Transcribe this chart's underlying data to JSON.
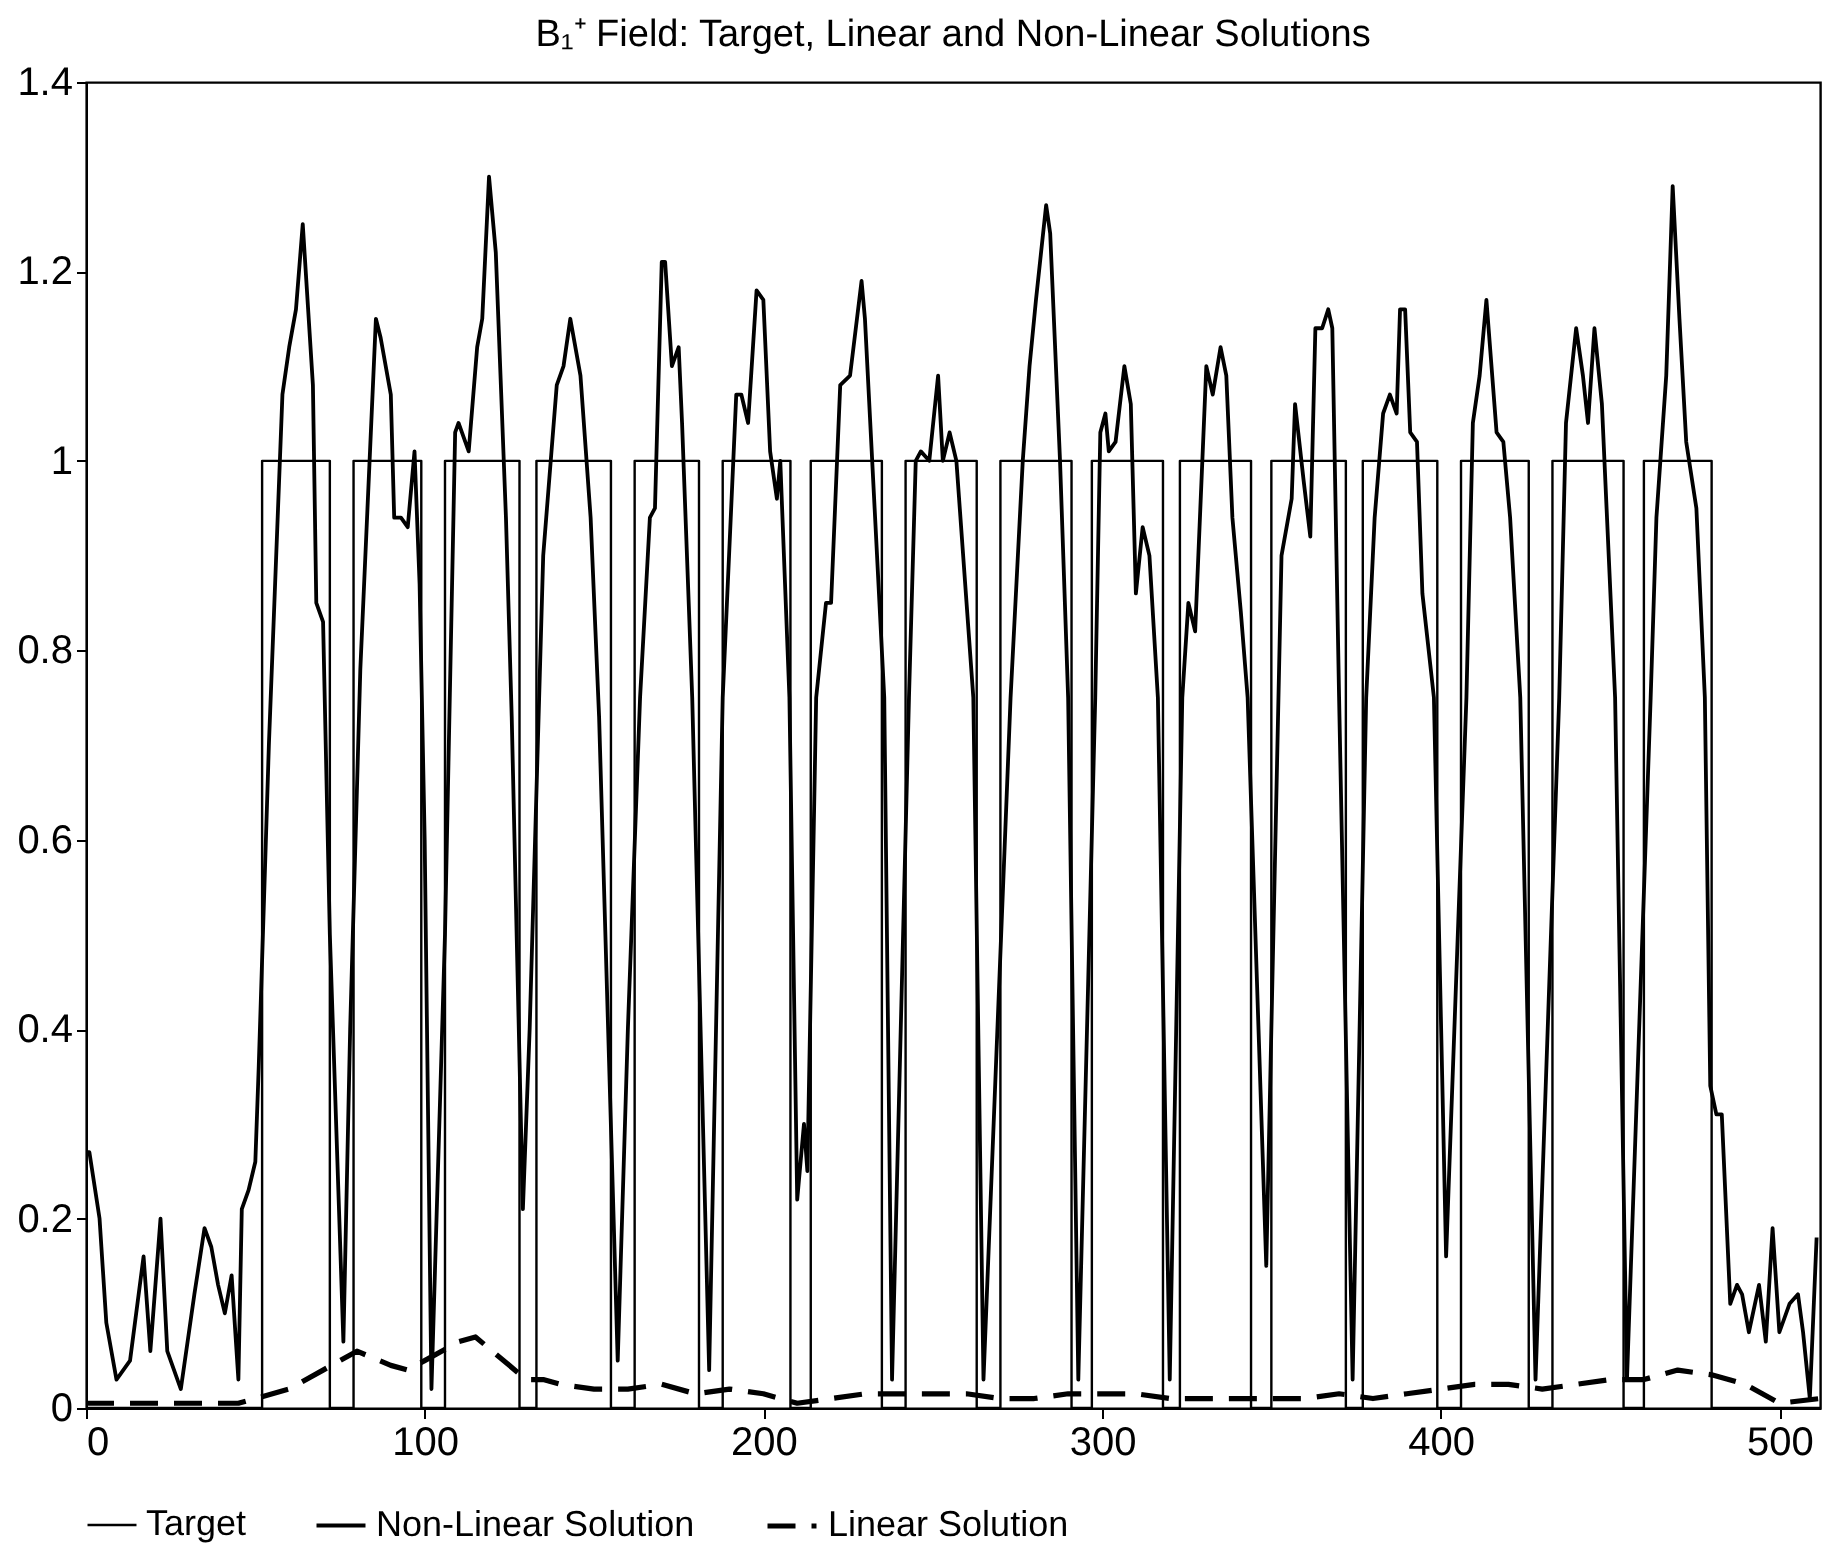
{
  "chart_data": {
    "type": "line",
    "title": "B₁⁺ Field: Target, Linear and Non-Linear Solutions",
    "xlim": [
      0,
      512
    ],
    "xticks": [
      0,
      100,
      200,
      300,
      400,
      500
    ],
    "ylim": [
      0,
      1.4
    ],
    "yticks": [
      0,
      0.2,
      0.4,
      0.6,
      0.8,
      1,
      1.2,
      1.4
    ],
    "legend": "bottom",
    "marker": "none",
    "series": [
      {
        "name": "Target",
        "color": "#000000",
        "line_style": "solid",
        "x": [
          0,
          52,
          52,
          72,
          72,
          79,
          79,
          99,
          99,
          106,
          106,
          128,
          128,
          133,
          133,
          155,
          155,
          162,
          162,
          181,
          181,
          188,
          188,
          208,
          208,
          214,
          214,
          235,
          235,
          242,
          242,
          263,
          263,
          270,
          270,
          291,
          291,
          297,
          297,
          318,
          318,
          323,
          323,
          344,
          344,
          350,
          350,
          372,
          372,
          377,
          377,
          399,
          399,
          406,
          406,
          426,
          426,
          433,
          433,
          454,
          454,
          460,
          460,
          480,
          480,
          512
        ],
        "values": [
          0,
          0,
          1,
          1,
          0,
          0,
          1,
          1,
          0,
          0,
          1,
          1,
          0,
          0,
          1,
          1,
          0,
          0,
          1,
          1,
          0,
          0,
          1,
          1,
          0,
          0,
          1,
          1,
          0,
          0,
          1,
          1,
          0,
          0,
          1,
          1,
          0,
          0,
          1,
          1,
          0,
          0,
          1,
          1,
          0,
          0,
          1,
          1,
          0,
          0,
          1,
          1,
          0,
          0,
          1,
          1,
          0,
          0,
          1,
          1,
          0,
          0,
          1,
          1,
          0,
          0
        ]
      },
      {
        "name": "Non-Linear Solution",
        "color": "#000000",
        "line_style": "solid",
        "x": [
          0,
          1,
          4,
          6,
          9,
          13,
          17,
          19,
          22,
          24,
          28,
          32,
          35,
          37,
          39,
          41,
          43,
          45,
          46,
          48,
          50,
          51,
          54,
          58,
          60,
          62,
          64,
          67,
          68,
          70,
          72,
          76,
          78,
          81,
          85.6,
          87,
          90,
          91,
          93,
          95,
          97,
          98.5,
          100,
          102,
          106,
          109,
          110,
          113,
          115.5,
          117,
          119,
          121,
          124,
          125.7,
          129,
          131,
          135,
          139,
          141,
          143,
          146,
          149,
          151.5,
          157,
          160,
          163.6,
          166.5,
          168,
          170,
          171,
          173,
          175,
          176,
          179,
          184,
          188,
          192,
          193.5,
          195.5,
          198,
          200,
          202,
          204,
          205,
          207.7,
          210,
          212,
          213,
          215.6,
          218.5,
          220,
          222.7,
          225.6,
          229,
          230,
          233,
          235.7,
          238,
          243,
          245,
          246.5,
          249,
          251.6,
          253,
          255,
          257,
          259,
          262,
          265,
          273,
          276.6,
          278.6,
          280.5,
          283.5,
          284.7,
          287.6,
          290,
          293,
          298,
          299.5,
          301,
          302,
          304,
          306.6,
          308.5,
          310,
          312,
          314,
          316.5,
          320,
          323.7,
          325.5,
          327.5,
          330.8,
          332.7,
          335,
          336.7,
          338.5,
          341,
          343,
          348.5,
          353,
          356,
          357,
          359.5,
          361.5,
          363,
          365,
          366.8,
          368,
          370,
          374,
          378,
          380.5,
          383,
          385,
          387,
          388,
          389.5,
          391,
          393,
          394.6,
          398,
          401.6,
          407.6,
          409.5,
          411.5,
          413.5,
          416.5,
          418.5,
          420.5,
          423.5,
          428,
          435,
          437,
          440,
          442,
          443.5,
          445.4,
          447.6,
          451.5,
          455,
          462,
          463.7,
          466.6,
          468.5,
          470.5,
          472.5,
          475.5,
          478,
          479.6,
          481.4,
          483,
          485.5,
          487.5,
          489,
          491,
          494,
          496,
          498,
          500,
          503,
          505.5,
          507,
          509,
          511
        ],
        "values": [
          0.27,
          0.27,
          0.2,
          0.09,
          0.03,
          0.05,
          0.16,
          0.06,
          0.2,
          0.06,
          0.02,
          0.12,
          0.19,
          0.17,
          0.13,
          0.1,
          0.14,
          0.03,
          0.21,
          0.23,
          0.26,
          0.36,
          0.7,
          1.07,
          1.12,
          1.16,
          1.25,
          1.08,
          0.85,
          0.83,
          0.5,
          0.07,
          0.4,
          0.78,
          1.15,
          1.13,
          1.07,
          0.94,
          0.94,
          0.93,
          1.01,
          0.87,
          0.6,
          0.02,
          0.5,
          1.03,
          1.04,
          1.01,
          1.12,
          1.15,
          1.3,
          1.22,
          0.94,
          0.73,
          0.21,
          0.4,
          0.9,
          1.08,
          1.1,
          1.15,
          1.09,
          0.94,
          0.73,
          0.05,
          0.4,
          0.75,
          0.94,
          0.95,
          1.21,
          1.21,
          1.1,
          1.12,
          1.04,
          0.75,
          0.04,
          0.75,
          1.07,
          1.07,
          1.04,
          1.18,
          1.17,
          1.01,
          0.96,
          1.0,
          0.75,
          0.22,
          0.3,
          0.25,
          0.75,
          0.85,
          0.85,
          1.08,
          1.09,
          1.19,
          1.15,
          0.94,
          0.75,
          0.03,
          0.75,
          1.0,
          1.01,
          1.0,
          1.09,
          1.0,
          1.03,
          1.0,
          0.9,
          0.75,
          0.03,
          0.75,
          1.0,
          1.1,
          1.17,
          1.27,
          1.24,
          1.0,
          0.75,
          0.03,
          0.75,
          1.03,
          1.05,
          1.01,
          1.02,
          1.1,
          1.06,
          0.86,
          0.93,
          0.9,
          0.75,
          0.03,
          0.75,
          0.85,
          0.82,
          1.1,
          1.07,
          1.12,
          1.09,
          0.94,
          0.84,
          0.75,
          0.15,
          0.9,
          0.96,
          1.06,
          0.98,
          0.92,
          1.14,
          1.14,
          1.16,
          1.14,
          0.75,
          0.03,
          0.75,
          0.94,
          1.05,
          1.07,
          1.05,
          1.16,
          1.16,
          1.03,
          1.02,
          0.86,
          0.75,
          0.16,
          0.75,
          1.04,
          1.09,
          1.17,
          1.03,
          1.02,
          0.94,
          0.75,
          0.03,
          0.75,
          1.04,
          1.14,
          1.09,
          1.04,
          1.14,
          1.06,
          0.75,
          0.03,
          0.75,
          0.94,
          1.09,
          1.29,
          1.15,
          1.02,
          0.95,
          0.75,
          0.34,
          0.31,
          0.31,
          0.11,
          0.13,
          0.12,
          0.08,
          0.13,
          0.07,
          0.19,
          0.08,
          0.11,
          0.12,
          0.08,
          0.01,
          0.18
        ]
      },
      {
        "name": "Linear Solution",
        "color": "#000000",
        "line_style": "dashed",
        "x": [
          0,
          20,
          45,
          50,
          60,
          70,
          80,
          90,
          95,
          100,
          110,
          115,
          120,
          130,
          135,
          140,
          150,
          160,
          170,
          180,
          190,
          200,
          210,
          220,
          230,
          240,
          250,
          260,
          270,
          280,
          290,
          300,
          310,
          320,
          330,
          340,
          350,
          360,
          370,
          380,
          390,
          400,
          410,
          420,
          430,
          440,
          450,
          460,
          470,
          480,
          490,
          500,
          512
        ],
        "values": [
          0.005,
          0.005,
          0.005,
          0.01,
          0.02,
          0.04,
          0.06,
          0.045,
          0.04,
          0.05,
          0.07,
          0.075,
          0.06,
          0.03,
          0.03,
          0.025,
          0.02,
          0.02,
          0.025,
          0.015,
          0.02,
          0.015,
          0.005,
          0.01,
          0.015,
          0.015,
          0.015,
          0.015,
          0.01,
          0.01,
          0.015,
          0.015,
          0.015,
          0.01,
          0.01,
          0.01,
          0.01,
          0.01,
          0.015,
          0.01,
          0.015,
          0.02,
          0.025,
          0.025,
          0.02,
          0.025,
          0.03,
          0.03,
          0.04,
          0.035,
          0.025,
          0.005,
          0.01
        ]
      }
    ]
  }
}
